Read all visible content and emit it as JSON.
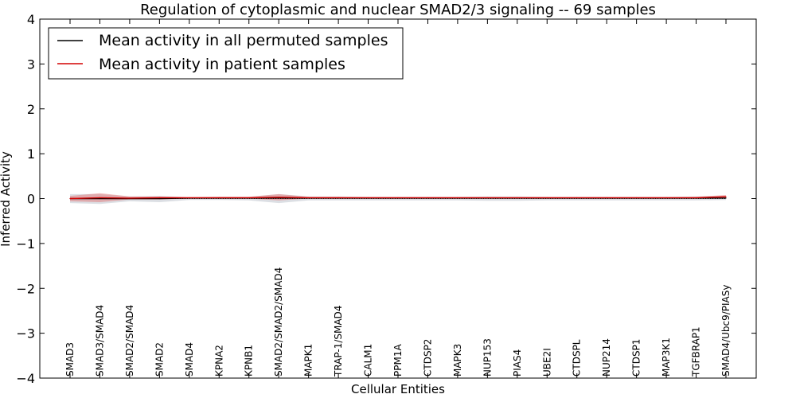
{
  "chart_data": {
    "type": "line",
    "title": "Regulation of cytoplasmic and nuclear SMAD2/3 signaling -- 69 samples",
    "xlabel": "Cellular Entities",
    "ylabel": "Inferred Activity",
    "ylim": [
      -4,
      4
    ],
    "yticks": [
      -4,
      -3,
      -2,
      -1,
      0,
      1,
      2,
      3,
      4
    ],
    "ytick_labels": [
      "−4",
      "−3",
      "−2",
      "−1",
      "0",
      "1",
      "2",
      "3",
      "4"
    ],
    "categories": [
      "SMAD3",
      "SMAD3/SMAD4",
      "SMAD2/SMAD4",
      "SMAD2",
      "SMAD4",
      "KPNA2",
      "KPNB1",
      "SMAD2/SMAD2/SMAD4",
      "MAPK1",
      "TRAP-1/SMAD4",
      "CALM1",
      "PPM1A",
      "CTDSP2",
      "MAPK3",
      "NUP153",
      "PIAS4",
      "UBE2I",
      "CTDSPL",
      "NUP214",
      "CTDSP1",
      "MAP3K1",
      "TGFBRAP1",
      "SMAD4/Ubc9/PIASy"
    ],
    "legend_position": "top-left",
    "series": [
      {
        "name": "Mean activity in all permuted samples",
        "color": "#000000",
        "values": [
          0.0,
          0.0,
          0.0,
          0.0,
          0.01,
          0.01,
          0.01,
          0.01,
          0.01,
          0.01,
          0.01,
          0.01,
          0.01,
          0.01,
          0.01,
          0.01,
          0.01,
          0.01,
          0.01,
          0.01,
          0.01,
          0.01,
          0.01
        ],
        "band_low": [
          -0.1,
          -0.12,
          -0.06,
          -0.08,
          -0.03,
          -0.03,
          -0.04,
          -0.1,
          -0.04,
          -0.04,
          -0.04,
          -0.04,
          -0.04,
          -0.04,
          -0.05,
          -0.05,
          -0.04,
          -0.04,
          -0.04,
          -0.04,
          -0.04,
          -0.04,
          -0.03
        ],
        "band_high": [
          0.1,
          0.1,
          0.05,
          0.06,
          0.03,
          0.04,
          0.04,
          0.1,
          0.05,
          0.05,
          0.04,
          0.04,
          0.04,
          0.04,
          0.05,
          0.05,
          0.04,
          0.04,
          0.04,
          0.04,
          0.04,
          0.05,
          0.06
        ],
        "band_color": "#9aa4b1"
      },
      {
        "name": "Mean activity in patient samples",
        "color": "#d40000",
        "values": [
          0.0,
          0.02,
          0.01,
          0.02,
          0.02,
          0.02,
          0.02,
          0.03,
          0.02,
          0.02,
          0.02,
          0.02,
          0.02,
          0.02,
          0.02,
          0.02,
          0.02,
          0.02,
          0.02,
          0.02,
          0.02,
          0.02,
          0.04
        ],
        "band_low": [
          -0.06,
          -0.08,
          -0.02,
          -0.02,
          0.0,
          0.0,
          0.0,
          -0.04,
          0.0,
          0.0,
          0.0,
          0.0,
          0.0,
          0.0,
          0.0,
          0.0,
          0.0,
          0.0,
          0.0,
          0.0,
          0.0,
          0.0,
          0.01
        ],
        "band_high": [
          0.06,
          0.12,
          0.05,
          0.05,
          0.03,
          0.04,
          0.04,
          0.1,
          0.04,
          0.04,
          0.03,
          0.03,
          0.03,
          0.03,
          0.03,
          0.03,
          0.03,
          0.03,
          0.03,
          0.03,
          0.03,
          0.04,
          0.08
        ],
        "band_color": "#e36a6a"
      }
    ],
    "reference_line": {
      "value": 0,
      "style": "dotted",
      "color": "#000000"
    }
  }
}
